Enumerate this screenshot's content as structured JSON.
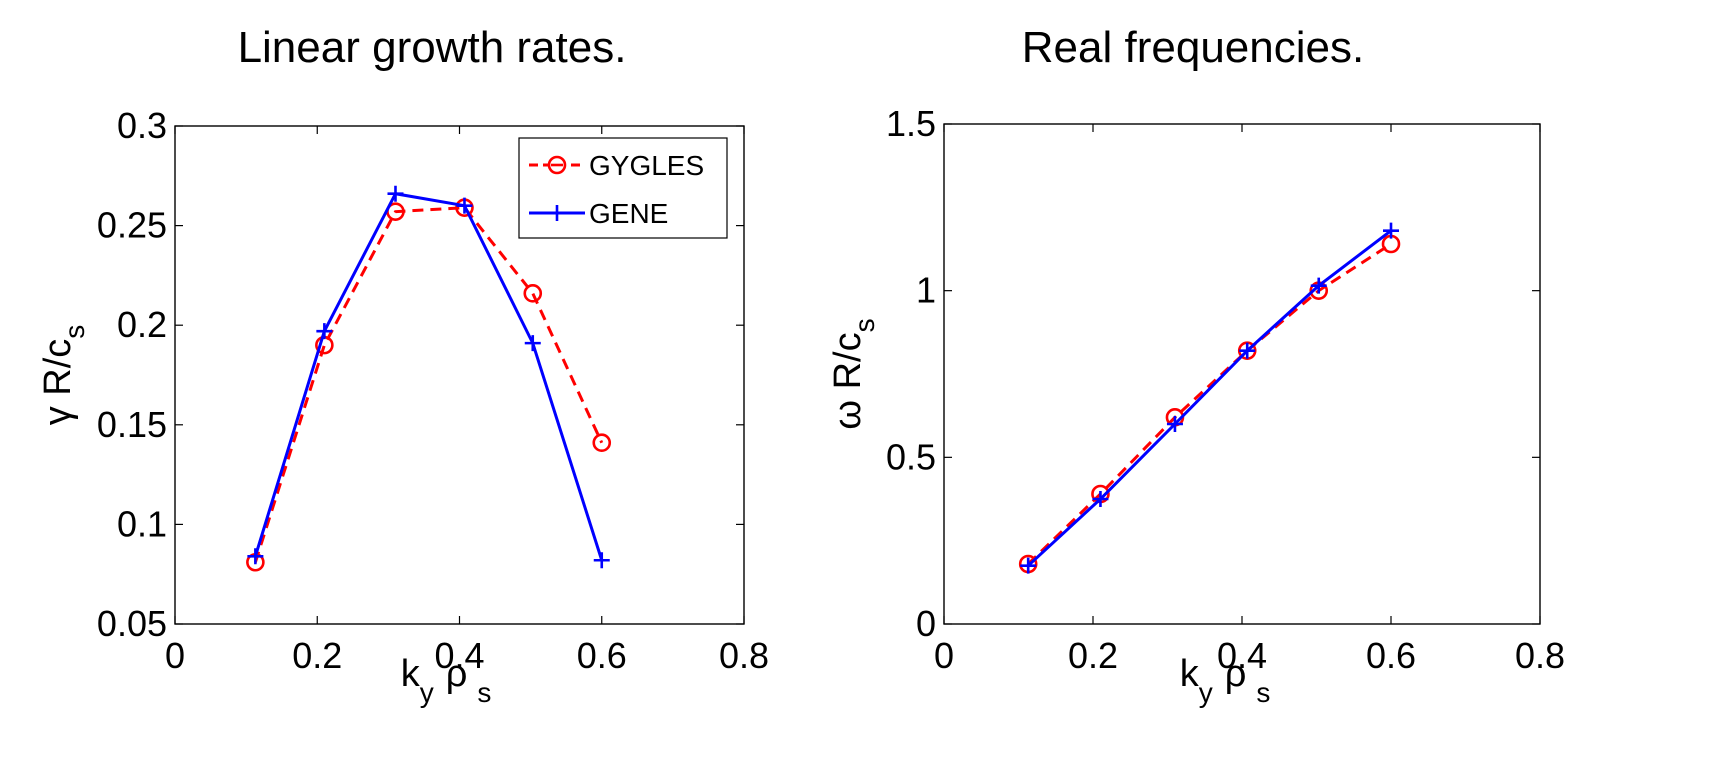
{
  "chart_data": [
    {
      "type": "line",
      "title": "Linear growth rates.",
      "xlabel": {
        "main": "k",
        "sub1": "y",
        "rho": "ρ",
        "sub2": "s"
      },
      "ylabel": {
        "symbol": "γ",
        "main": "R/c",
        "sub": "s"
      },
      "xlim": [
        0,
        0.8
      ],
      "ylim": [
        0.05,
        0.3
      ],
      "x_ticks": [
        "0",
        "0.2",
        "0.4",
        "0.6",
        "0.8"
      ],
      "x_tick_values": [
        0,
        0.2,
        0.4,
        0.6,
        0.8
      ],
      "y_ticks": [
        "0.05",
        "0.1",
        "0.15",
        "0.2",
        "0.25",
        "0.3"
      ],
      "y_tick_values": [
        0.05,
        0.1,
        0.15,
        0.2,
        0.25,
        0.3
      ],
      "grid": false,
      "legend_position": "top-right",
      "series": [
        {
          "name": "GYGLES",
          "color": "#ff0000",
          "style": "dashed",
          "marker": "circle",
          "x": [
            0.113,
            0.21,
            0.31,
            0.407,
            0.503,
            0.6
          ],
          "y": [
            0.081,
            0.19,
            0.257,
            0.259,
            0.216,
            0.141
          ]
        },
        {
          "name": "GENE",
          "color": "#0000ff",
          "style": "solid",
          "marker": "plus",
          "x": [
            0.113,
            0.21,
            0.31,
            0.407,
            0.503,
            0.6
          ],
          "y": [
            0.084,
            0.197,
            0.266,
            0.26,
            0.191,
            0.082
          ]
        }
      ]
    },
    {
      "type": "line",
      "title": "Real frequencies.",
      "xlabel": {
        "main": "k",
        "sub1": "y",
        "rho": "ρ",
        "sub2": "s"
      },
      "ylabel": {
        "symbol": "ω",
        "main": "R/c",
        "sub": "s"
      },
      "xlim": [
        0,
        0.8
      ],
      "ylim": [
        0,
        1.5
      ],
      "x_ticks": [
        "0",
        "0.2",
        "0.4",
        "0.6",
        "0.8"
      ],
      "x_tick_values": [
        0,
        0.2,
        0.4,
        0.6,
        0.8
      ],
      "y_ticks": [
        "0",
        "0.5",
        "1",
        "1.5"
      ],
      "y_tick_values": [
        0,
        0.5,
        1,
        1.5
      ],
      "grid": false,
      "legend_position": "none",
      "series": [
        {
          "color": "#ff0000",
          "style": "dashed",
          "marker": "circle",
          "x": [
            0.113,
            0.21,
            0.31,
            0.407,
            0.503,
            0.6
          ],
          "y": [
            0.18,
            0.39,
            0.62,
            0.82,
            1.0,
            1.14
          ]
        },
        {
          "color": "#0000ff",
          "style": "solid",
          "marker": "plus",
          "x": [
            0.113,
            0.21,
            0.31,
            0.407,
            0.503,
            0.6
          ],
          "y": [
            0.175,
            0.375,
            0.6,
            0.82,
            1.015,
            1.18
          ]
        }
      ]
    }
  ]
}
